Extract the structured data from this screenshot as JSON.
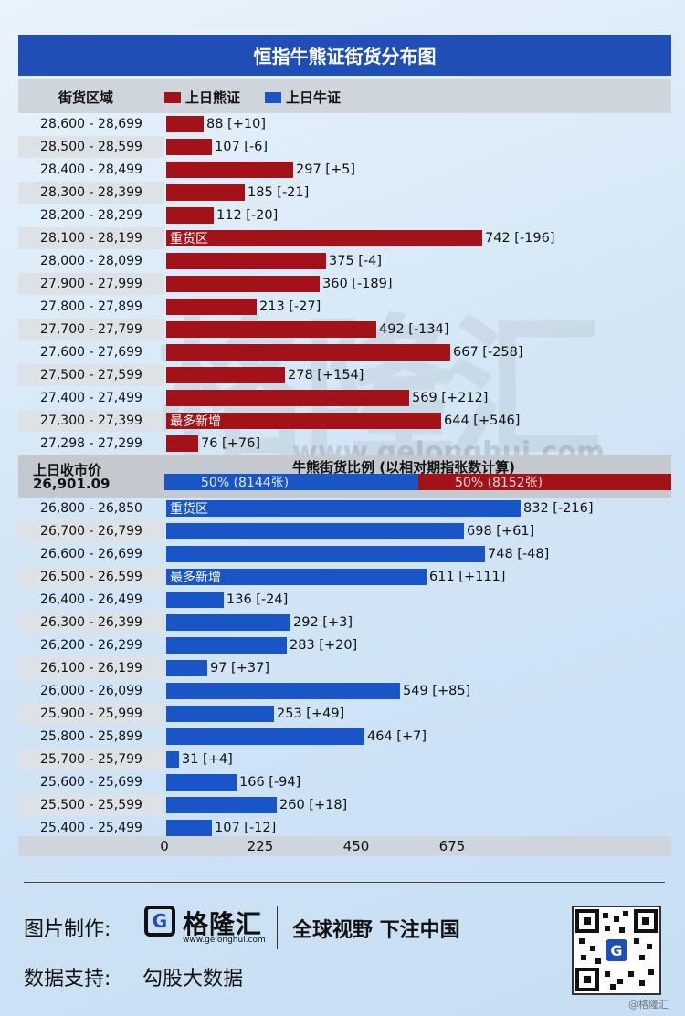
{
  "title": "恒指牛熊证街货分布图",
  "legend": {
    "range_header": "街货区域",
    "bear_label": "上日熊证",
    "bull_label": "上日牛证",
    "bear_color": "#a31218",
    "bull_color": "#1a55c8"
  },
  "middle": {
    "close_label": "上日收市价",
    "close_value": "26,901.09",
    "ratio_title": "牛熊街货比例 (以相对期指张数计算)",
    "bull_ratio_text": "50% (8144张)",
    "bear_ratio_text": "50% (8152张)",
    "bull_ratio": 0.5
  },
  "footer": {
    "made_by_label": "图片制作:",
    "brand_name": "格隆汇",
    "brand_url": "www.gelonghui.com",
    "slogan": "全球视野 下注中国",
    "data_label": "数据支持:",
    "data_source": "勾股大数据",
    "credit": "@格隆汇",
    "watermark": "格隆汇",
    "watermark_url": "www.gelonghui.com"
  },
  "chart_data": {
    "type": "bar",
    "orientation": "horizontal",
    "xlim": [
      0,
      825
    ],
    "x_ticks": [
      0,
      225,
      450,
      675
    ],
    "bear": [
      {
        "range": "28,600 - 28,699",
        "value": 88,
        "change": "[+10]",
        "tag": ""
      },
      {
        "range": "28,500 - 28,599",
        "value": 107,
        "change": "[-6]",
        "tag": ""
      },
      {
        "range": "28,400 - 28,499",
        "value": 297,
        "change": "[+5]",
        "tag": ""
      },
      {
        "range": "28,300 - 28,399",
        "value": 185,
        "change": "[-21]",
        "tag": ""
      },
      {
        "range": "28,200 - 28,299",
        "value": 112,
        "change": "[-20]",
        "tag": ""
      },
      {
        "range": "28,100 - 28,199",
        "value": 742,
        "change": "[-196]",
        "tag": "重货区"
      },
      {
        "range": "28,000 - 28,099",
        "value": 375,
        "change": "[-4]",
        "tag": ""
      },
      {
        "range": "27,900 - 27,999",
        "value": 360,
        "change": "[-189]",
        "tag": ""
      },
      {
        "range": "27,800 - 27,899",
        "value": 213,
        "change": "[-27]",
        "tag": ""
      },
      {
        "range": "27,700 - 27,799",
        "value": 492,
        "change": "[-134]",
        "tag": ""
      },
      {
        "range": "27,600 - 27,699",
        "value": 667,
        "change": "[-258]",
        "tag": ""
      },
      {
        "range": "27,500 - 27,599",
        "value": 278,
        "change": "[+154]",
        "tag": ""
      },
      {
        "range": "27,400 - 27,499",
        "value": 569,
        "change": "[+212]",
        "tag": ""
      },
      {
        "range": "27,300 - 27,399",
        "value": 644,
        "change": "[+546]",
        "tag": "最多新增"
      },
      {
        "range": "27,298 - 27,299",
        "value": 76,
        "change": "[+76]",
        "tag": ""
      }
    ],
    "bull": [
      {
        "range": "26,800 - 26,850",
        "value": 832,
        "change": "[-216]",
        "tag": "重货区"
      },
      {
        "range": "26,700 - 26,799",
        "value": 698,
        "change": "[+61]",
        "tag": ""
      },
      {
        "range": "26,600 - 26,699",
        "value": 748,
        "change": "[-48]",
        "tag": ""
      },
      {
        "range": "26,500 - 26,599",
        "value": 611,
        "change": "[+111]",
        "tag": "最多新增"
      },
      {
        "range": "26,400 - 26,499",
        "value": 136,
        "change": "[-24]",
        "tag": ""
      },
      {
        "range": "26,300 - 26,399",
        "value": 292,
        "change": "[+3]",
        "tag": ""
      },
      {
        "range": "26,200 - 26,299",
        "value": 283,
        "change": "[+20]",
        "tag": ""
      },
      {
        "range": "26,100 - 26,199",
        "value": 97,
        "change": "[+37]",
        "tag": ""
      },
      {
        "range": "26,000 - 26,099",
        "value": 549,
        "change": "[+85]",
        "tag": ""
      },
      {
        "range": "25,900 - 25,999",
        "value": 253,
        "change": "[+49]",
        "tag": ""
      },
      {
        "range": "25,800 - 25,899",
        "value": 464,
        "change": "[+7]",
        "tag": ""
      },
      {
        "range": "25,700 - 25,799",
        "value": 31,
        "change": "[+4]",
        "tag": ""
      },
      {
        "range": "25,600 - 25,699",
        "value": 166,
        "change": "[-94]",
        "tag": ""
      },
      {
        "range": "25,500 - 25,599",
        "value": 260,
        "change": "[+18]",
        "tag": ""
      },
      {
        "range": "25,400 - 25,499",
        "value": 107,
        "change": "[-12]",
        "tag": ""
      }
    ]
  }
}
